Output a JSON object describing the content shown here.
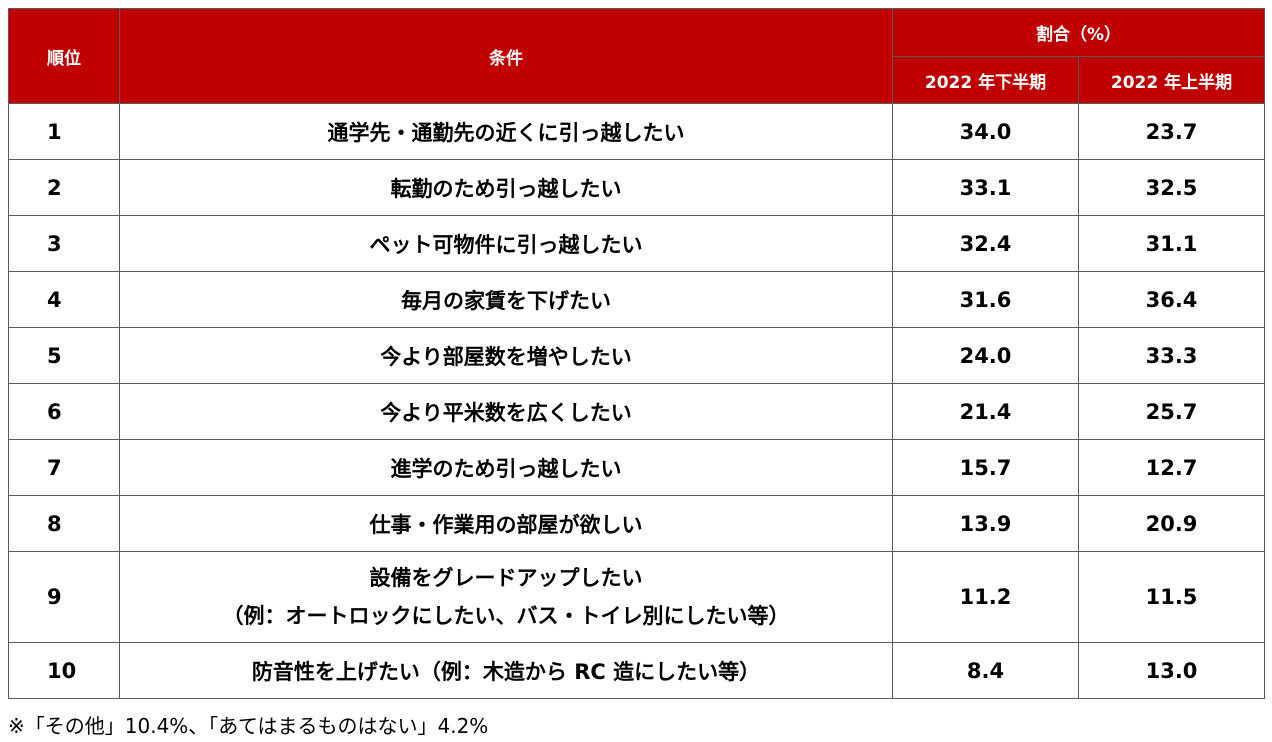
{
  "header": {
    "rank": "順位",
    "condition": "条件",
    "ratio": "割合（%）",
    "col_h2": "2022 年下半期",
    "col_h1": "2022 年上半期"
  },
  "rows": [
    {
      "rank": "1",
      "condition": "通学先・通勤先の近くに引っ越したい",
      "h2": "34.0",
      "h1": "23.7"
    },
    {
      "rank": "2",
      "condition": "転勤のため引っ越したい",
      "h2": "33.1",
      "h1": "32.5"
    },
    {
      "rank": "3",
      "condition": "ペット可物件に引っ越したい",
      "h2": "32.4",
      "h1": "31.1"
    },
    {
      "rank": "4",
      "condition": "毎月の家賃を下げたい",
      "h2": "31.6",
      "h1": "36.4"
    },
    {
      "rank": "5",
      "condition": "今より部屋数を増やしたい",
      "h2": "24.0",
      "h1": "33.3"
    },
    {
      "rank": "6",
      "condition": "今より平米数を広くしたい",
      "h2": "21.4",
      "h1": "25.7"
    },
    {
      "rank": "7",
      "condition": "進学のため引っ越したい",
      "h2": "15.7",
      "h1": "12.7"
    },
    {
      "rank": "8",
      "condition": "仕事・作業用の部屋が欲しい",
      "h2": "13.9",
      "h1": "20.9"
    },
    {
      "rank": "9",
      "condition": "設備をグレードアップしたい",
      "condition_note": "（例：オートロックにしたい、バス・トイレ別にしたい等）",
      "h2": "11.2",
      "h1": "11.5"
    },
    {
      "rank": "10",
      "condition": "防音性を上げたい（例：木造から RC 造にしたい等）",
      "h2": "8.4",
      "h1": "13.0"
    }
  ],
  "footnote": "※「その他」10.4%、「あてはまるものはない」4.2%"
}
